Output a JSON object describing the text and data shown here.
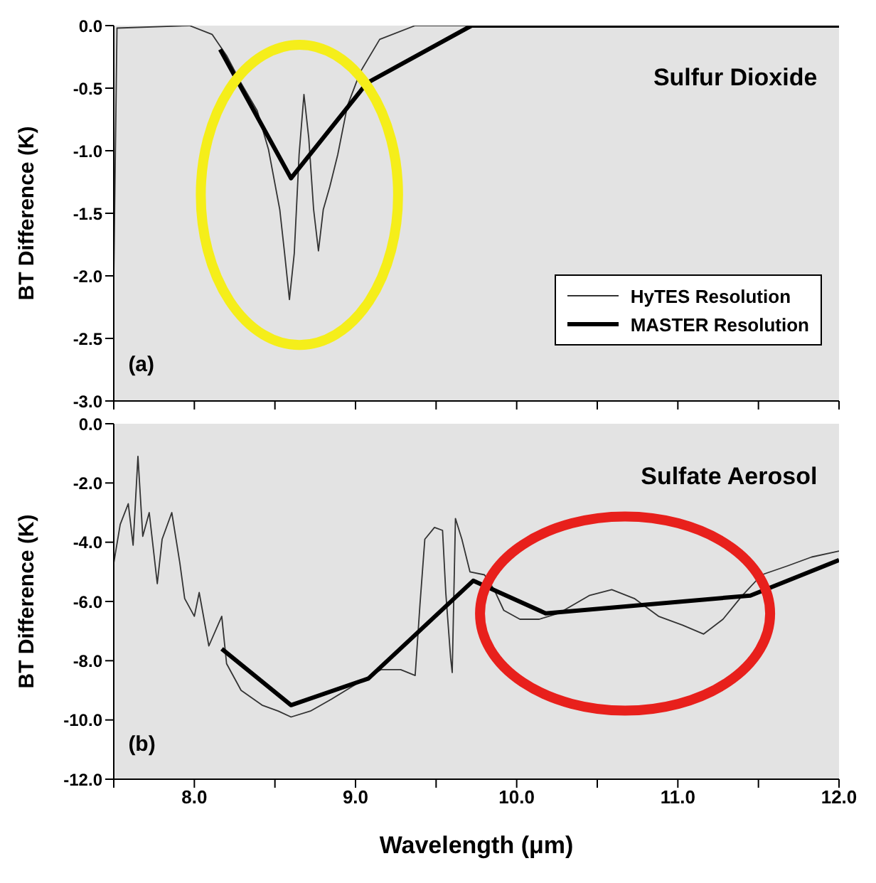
{
  "chart_data": [
    {
      "type": "line",
      "ylabel": "BT Difference (K)",
      "annotations": [
        "Sulfur Dioxide",
        "(a)"
      ],
      "xlim": [
        7.5,
        12.0
      ],
      "xticks": [
        {
          "value": 7.5,
          "label": null
        },
        {
          "value": 8.0,
          "label": null
        },
        {
          "value": 8.5,
          "label": null
        },
        {
          "value": 9.0,
          "label": null
        },
        {
          "value": 9.5,
          "label": null
        },
        {
          "value": 10.0,
          "label": null
        },
        {
          "value": 10.5,
          "label": null
        },
        {
          "value": 11.0,
          "label": null
        },
        {
          "value": 11.5,
          "label": null
        },
        {
          "value": 12.0,
          "label": null
        }
      ],
      "ylim": [
        -3.0,
        0.0
      ],
      "yticks": [
        {
          "value": -3.0,
          "label": "-3.0"
        },
        {
          "value": -2.5,
          "label": "-2.5"
        },
        {
          "value": -2.0,
          "label": "-2.0"
        },
        {
          "value": -1.5,
          "label": "-1.5"
        },
        {
          "value": -1.0,
          "label": "-1.0"
        },
        {
          "value": -0.5,
          "label": "-0.5"
        },
        {
          "value": 0.0,
          "label": "0.0"
        }
      ],
      "tick_labels": "y",
      "grid": false,
      "legend": "bottom right",
      "marker": "none",
      "line_style": "solid",
      "series": [
        {
          "name": "HyTES Resolution",
          "color": "#333333",
          "x": [
            7.5,
            7.52,
            7.97,
            8.11,
            8.2,
            8.29,
            8.39,
            8.46,
            8.53,
            8.56,
            8.59,
            8.62,
            8.65,
            8.68,
            8.71,
            8.74,
            8.77,
            8.8,
            8.84,
            8.89,
            8.95,
            9.03,
            9.15,
            9.37,
            12.0
          ],
          "values": [
            -2.0,
            -0.02,
            0.0,
            -0.07,
            -0.24,
            -0.46,
            -0.68,
            -0.99,
            -1.47,
            -1.82,
            -2.19,
            -1.82,
            -1.03,
            -0.55,
            -0.9,
            -1.47,
            -1.8,
            -1.47,
            -1.29,
            -1.03,
            -0.64,
            -0.37,
            -0.11,
            0.0,
            0.0
          ]
        },
        {
          "name": "MASTER Resolution",
          "color": "#000000",
          "x": [
            8.16,
            8.6,
            9.07,
            9.72,
            12.0
          ],
          "values": [
            -0.19,
            -1.22,
            -0.46,
            0.0,
            0.0
          ]
        }
      ]
    },
    {
      "type": "line",
      "xlabel": "Wavelength (μm)",
      "ylabel": "BT Difference (K)",
      "annotations": [
        "Sulfate Aerosol",
        "(b)"
      ],
      "xlim": [
        7.5,
        12.0
      ],
      "xticks": [
        {
          "value": 7.5,
          "label": null
        },
        {
          "value": 8.0,
          "label": "8.0"
        },
        {
          "value": 8.5,
          "label": null
        },
        {
          "value": 9.0,
          "label": "9.0"
        },
        {
          "value": 9.5,
          "label": null
        },
        {
          "value": 10.0,
          "label": "10.0"
        },
        {
          "value": 10.5,
          "label": null
        },
        {
          "value": 11.0,
          "label": "11.0"
        },
        {
          "value": 11.5,
          "label": null
        },
        {
          "value": 12.0,
          "label": "12.0"
        }
      ],
      "ylim": [
        -12.0,
        0.0
      ],
      "yticks": [
        {
          "value": -12.0,
          "label": "-12.0"
        },
        {
          "value": -10.0,
          "label": "-10.0"
        },
        {
          "value": -8.0,
          "label": "-8.0"
        },
        {
          "value": -6.0,
          "label": "-6.0"
        },
        {
          "value": -4.0,
          "label": "-4.0"
        },
        {
          "value": -2.0,
          "label": "-2.0"
        },
        {
          "value": 0.0,
          "label": "0.0"
        }
      ],
      "grid": false,
      "legend": false,
      "marker": "none",
      "line_style": "solid",
      "series": [
        {
          "color": "#333333",
          "x": [
            7.5,
            7.54,
            7.59,
            7.62,
            7.65,
            7.68,
            7.72,
            7.77,
            7.8,
            7.86,
            7.91,
            7.94,
            8.0,
            8.03,
            8.09,
            8.17,
            8.2,
            8.29,
            8.42,
            8.52,
            8.6,
            8.72,
            8.85,
            9.0,
            9.16,
            9.28,
            9.37,
            9.4,
            9.43,
            9.49,
            9.54,
            9.56,
            9.59,
            9.6,
            9.62,
            9.66,
            9.71,
            9.8,
            9.86,
            9.92,
            10.02,
            10.14,
            10.26,
            10.45,
            10.59,
            10.73,
            10.88,
            11.03,
            11.16,
            11.28,
            11.4,
            11.52,
            11.68,
            11.83,
            12.0
          ],
          "values": [
            -4.7,
            -3.4,
            -2.7,
            -4.1,
            -1.1,
            -3.8,
            -3.0,
            -5.4,
            -3.9,
            -3.0,
            -4.7,
            -5.9,
            -6.5,
            -5.7,
            -7.5,
            -6.5,
            -8.1,
            -9.0,
            -9.5,
            -9.7,
            -9.9,
            -9.7,
            -9.3,
            -8.8,
            -8.3,
            -8.3,
            -8.5,
            -6.1,
            -3.9,
            -3.5,
            -3.6,
            -5.7,
            -7.9,
            -8.4,
            -3.2,
            -3.9,
            -5.0,
            -5.1,
            -5.6,
            -6.3,
            -6.6,
            -6.6,
            -6.4,
            -5.8,
            -5.6,
            -5.9,
            -6.5,
            -6.8,
            -7.1,
            -6.6,
            -5.8,
            -5.1,
            -4.8,
            -4.5,
            -4.3
          ]
        },
        {
          "color": "#000000",
          "x": [
            8.17,
            8.6,
            9.08,
            9.73,
            10.18,
            11.45,
            12.0
          ],
          "values": [
            -7.6,
            -9.5,
            -8.6,
            -5.3,
            -6.4,
            -5.8,
            -4.6
          ]
        }
      ]
    }
  ]
}
